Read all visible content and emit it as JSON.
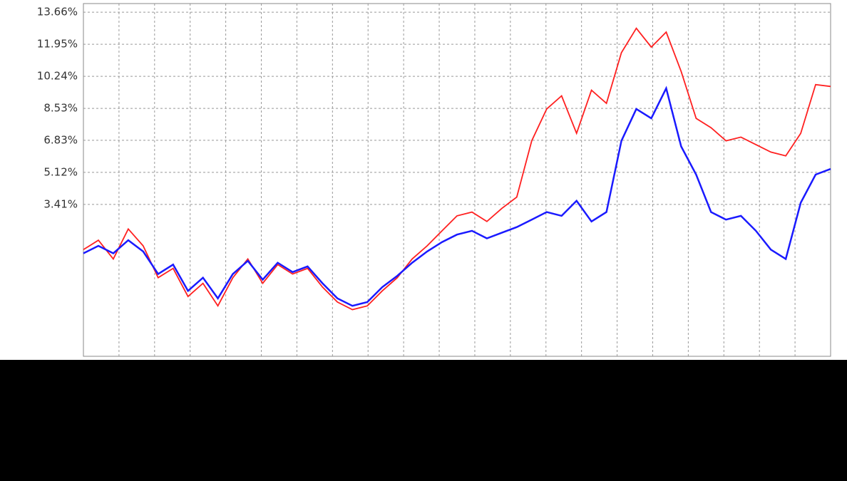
{
  "chart_data": {
    "type": "line",
    "ylim": [
      -4.69,
      14.12
    ],
    "yticks": [
      {
        "value": 3.41,
        "label": "3.41%"
      },
      {
        "value": 5.12,
        "label": "5.12%"
      },
      {
        "value": 6.83,
        "label": "6.83%"
      },
      {
        "value": 8.53,
        "label": "8.53%"
      },
      {
        "value": 10.24,
        "label": "10.24%"
      },
      {
        "value": 11.95,
        "label": "11.95%"
      },
      {
        "value": 13.66,
        "label": "13.66%"
      }
    ],
    "grid": true,
    "series": [
      {
        "color": "#ff2020",
        "values": [
          1.0,
          1.5,
          0.5,
          2.1,
          1.2,
          -0.5,
          0.0,
          -1.5,
          -0.8,
          -2.0,
          -0.5,
          0.5,
          -0.8,
          0.2,
          -0.3,
          0.0,
          -1.0,
          -1.8,
          -2.2,
          -2.0,
          -1.2,
          -0.5,
          0.5,
          1.2,
          2.0,
          2.8,
          3.0,
          2.5,
          3.2,
          3.8,
          6.8,
          8.5,
          9.2,
          7.2,
          9.5,
          8.8,
          11.5,
          12.8,
          11.8,
          12.6,
          10.5,
          8.0,
          7.5,
          6.8,
          7.0,
          6.6,
          6.2,
          6.0,
          7.2,
          9.8,
          9.7
        ]
      },
      {
        "color": "#1a1aff",
        "values": [
          0.8,
          1.2,
          0.8,
          1.5,
          0.9,
          -0.3,
          0.2,
          -1.2,
          -0.5,
          -1.6,
          -0.3,
          0.4,
          -0.6,
          0.3,
          -0.2,
          0.1,
          -0.8,
          -1.6,
          -2.0,
          -1.8,
          -1.0,
          -0.4,
          0.3,
          0.9,
          1.4,
          1.8,
          2.0,
          1.6,
          1.9,
          2.2,
          2.6,
          3.0,
          2.8,
          3.6,
          2.5,
          3.0,
          6.8,
          8.5,
          8.0,
          9.6,
          6.5,
          5.0,
          3.0,
          2.6,
          2.8,
          2.0,
          1.0,
          0.5,
          3.5,
          5.0,
          5.3
        ]
      }
    ]
  }
}
